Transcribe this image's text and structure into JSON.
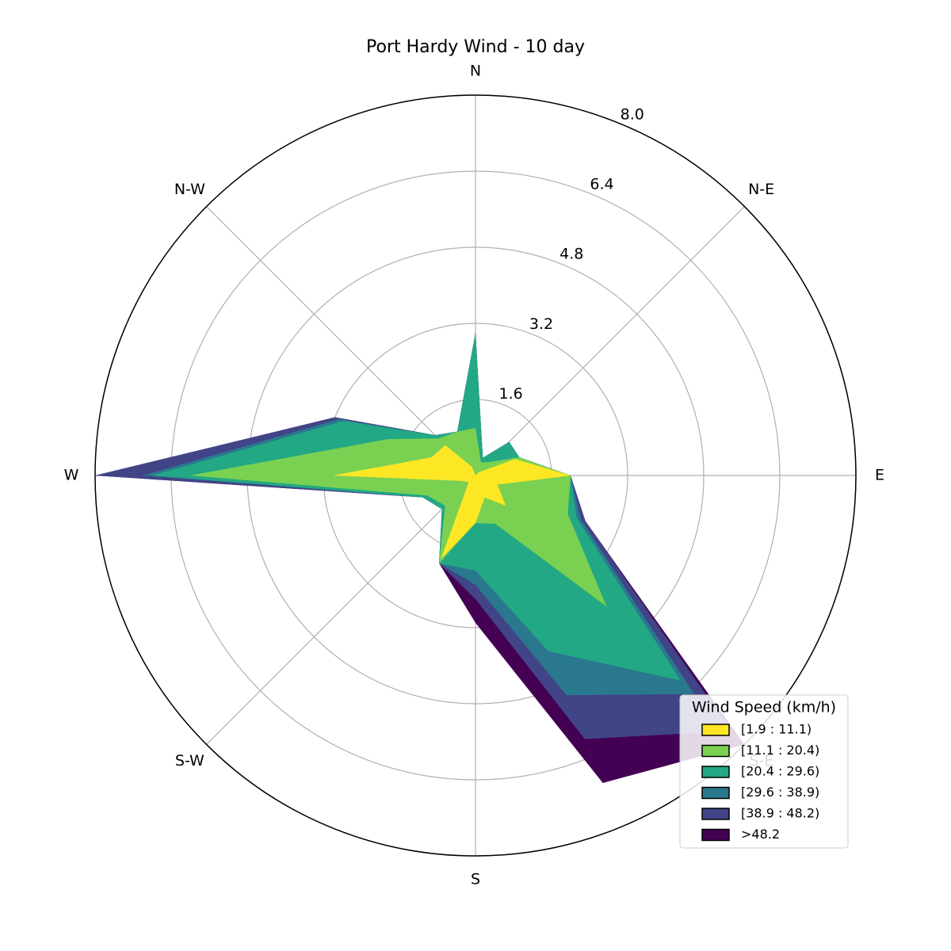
{
  "chart_data": {
    "type": "windrose",
    "title": "Port Hardy Wind - 10 day",
    "categories": [
      "N",
      null,
      "N-E",
      null,
      "E",
      null,
      "S-E",
      null,
      "S",
      null,
      "S-W",
      null,
      "W",
      null,
      "N-W",
      null
    ],
    "rlim": [
      0,
      8
    ],
    "rticks": [
      1.6,
      3.2,
      4.8,
      6.4,
      {
        "value": 8,
        "label": "8.0"
      }
    ],
    "grid": true,
    "legend_title": "Wind Speed (km/h)",
    "legend_position": "lower right",
    "series": [
      {
        "name": "[1.9 : 11.1)",
        "color": "#fde725",
        "values": [
          0,
          0,
          0.1,
          0.9,
          2.0,
          0.5,
          0.9,
          0.5,
          1.0,
          1.9,
          0.2,
          0.3,
          3.0,
          1.0,
          0.9,
          0.2
        ]
      },
      {
        "name": "[11.1 : 20.4)",
        "color": "#7ad151",
        "values": [
          1.0,
          0.3,
          0.3,
          0.1,
          0,
          1.6,
          3.0,
          0.6,
          0,
          0.1,
          0.7,
          0.8,
          3.0,
          1.0,
          0.2,
          0.8
        ]
      },
      {
        "name": "[20.4 : 29.6)",
        "color": "#22a884",
        "values": [
          2.0,
          0.1,
          0.6,
          0,
          0,
          0.2,
          2.2,
          2.9,
          1.0,
          0,
          0.1,
          0.1,
          0.8,
          1.0,
          0.1,
          0
        ]
      },
      {
        "name": "[29.6 : 38.9)",
        "color": "#2a788e",
        "values": [
          0,
          0,
          0,
          0,
          0,
          0.1,
          0.4,
          1.0,
          0.3,
          0,
          0,
          0,
          0.2,
          0.1,
          0,
          0
        ]
      },
      {
        "name": "[38.9 : 48.2)",
        "color": "#414487",
        "values": [
          0,
          0,
          0,
          0,
          0,
          0.1,
          1.1,
          1.0,
          0.3,
          0,
          0,
          0,
          1.0,
          0.1,
          0,
          0
        ]
      },
      {
        "name": ">48.2",
        "color": "#440154",
        "values": [
          0,
          0,
          0,
          0,
          0,
          0,
          0.4,
          1.0,
          0.5,
          0,
          0,
          0,
          0,
          0,
          0,
          0
        ]
      }
    ]
  }
}
